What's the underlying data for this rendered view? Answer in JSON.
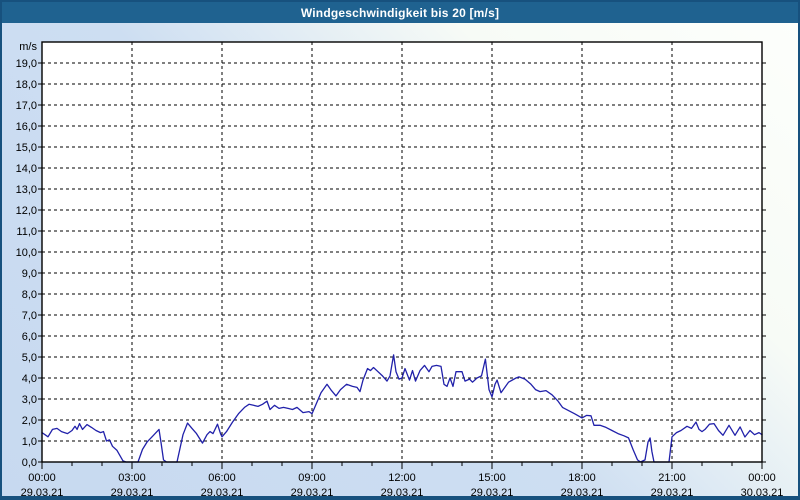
{
  "window": {
    "title": "Windgeschwindigkeit bis 20 [m/s]"
  },
  "colors": {
    "frame_border": "#17517e",
    "titlebar_bg": "#1f6290",
    "titlebar_text": "#ffffff",
    "plot_bg": "#ffffff",
    "plot_border": "#000000",
    "grid": "#000000",
    "series_line": "#2121aa",
    "label_text": "#000000",
    "margin_bg_bottom_left": "#c7d9f0",
    "margin_bg_top_right": "#fdfffc"
  },
  "chart_data": {
    "type": "line",
    "title": "Windgeschwindigkeit bis 20 [m/s]",
    "unit_label": "m/s",
    "ylim": [
      0,
      20
    ],
    "xlim_hours": [
      0,
      24
    ],
    "grid": {
      "style": "dashed",
      "horizontal_step": 1,
      "vertical_step_hours": 3,
      "minor_x_tick_hours": 1
    },
    "legend": "none",
    "y_ticks": [
      {
        "value": 0,
        "label": "0,0"
      },
      {
        "value": 1,
        "label": "1,0"
      },
      {
        "value": 2,
        "label": "2,0"
      },
      {
        "value": 3,
        "label": "3,0"
      },
      {
        "value": 4,
        "label": "4,0"
      },
      {
        "value": 5,
        "label": "5,0"
      },
      {
        "value": 6,
        "label": "6,0"
      },
      {
        "value": 7,
        "label": "7,0"
      },
      {
        "value": 8,
        "label": "8,0"
      },
      {
        "value": 9,
        "label": "9,0"
      },
      {
        "value": 10,
        "label": "10,0"
      },
      {
        "value": 11,
        "label": "11,0"
      },
      {
        "value": 12,
        "label": "12,0"
      },
      {
        "value": 13,
        "label": "13,0"
      },
      {
        "value": 14,
        "label": "14,0"
      },
      {
        "value": 15,
        "label": "15,0"
      },
      {
        "value": 16,
        "label": "16,0"
      },
      {
        "value": 17,
        "label": "17,0"
      },
      {
        "value": 18,
        "label": "18,0"
      },
      {
        "value": 19,
        "label": "19,0"
      }
    ],
    "x_ticks": [
      {
        "hour": 0,
        "time": "00:00",
        "date": "29.03.21"
      },
      {
        "hour": 3,
        "time": "03:00",
        "date": "29.03.21"
      },
      {
        "hour": 6,
        "time": "06:00",
        "date": "29.03.21"
      },
      {
        "hour": 9,
        "time": "09:00",
        "date": "29.03.21"
      },
      {
        "hour": 12,
        "time": "12:00",
        "date": "29.03.21"
      },
      {
        "hour": 15,
        "time": "15:00",
        "date": "29.03.21"
      },
      {
        "hour": 18,
        "time": "18:00",
        "date": "29.03.21"
      },
      {
        "hour": 21,
        "time": "21:00",
        "date": "29.03.21"
      },
      {
        "hour": 24,
        "time": "00:00",
        "date": "30.03.21"
      }
    ],
    "series": [
      {
        "name": "Windgeschwindigkeit",
        "color": "#2121aa",
        "points": [
          [
            0.0,
            1.4
          ],
          [
            0.1,
            1.3
          ],
          [
            0.2,
            1.2
          ],
          [
            0.35,
            1.55
          ],
          [
            0.5,
            1.6
          ],
          [
            0.65,
            1.45
          ],
          [
            0.85,
            1.35
          ],
          [
            1.0,
            1.5
          ],
          [
            1.1,
            1.7
          ],
          [
            1.17,
            1.55
          ],
          [
            1.25,
            1.83
          ],
          [
            1.35,
            1.55
          ],
          [
            1.5,
            1.78
          ],
          [
            1.65,
            1.65
          ],
          [
            1.8,
            1.5
          ],
          [
            1.95,
            1.4
          ],
          [
            2.05,
            1.45
          ],
          [
            2.15,
            1.0
          ],
          [
            2.25,
            1.05
          ],
          [
            2.35,
            0.75
          ],
          [
            2.5,
            0.55
          ],
          [
            2.6,
            0.3
          ],
          [
            2.7,
            0.05
          ],
          [
            2.8,
            0.0
          ],
          [
            3.2,
            0.0
          ],
          [
            3.35,
            0.6
          ],
          [
            3.5,
            0.95
          ],
          [
            3.7,
            1.25
          ],
          [
            3.9,
            1.55
          ],
          [
            3.97,
            0.9
          ],
          [
            4.05,
            0.1
          ],
          [
            4.15,
            0.0
          ],
          [
            4.5,
            0.0
          ],
          [
            4.6,
            0.65
          ],
          [
            4.7,
            1.3
          ],
          [
            4.85,
            1.85
          ],
          [
            5.0,
            1.6
          ],
          [
            5.15,
            1.35
          ],
          [
            5.35,
            0.9
          ],
          [
            5.5,
            1.3
          ],
          [
            5.6,
            1.45
          ],
          [
            5.7,
            1.35
          ],
          [
            5.85,
            1.8
          ],
          [
            5.95,
            1.35
          ],
          [
            6.0,
            1.2
          ],
          [
            6.15,
            1.45
          ],
          [
            6.35,
            1.9
          ],
          [
            6.55,
            2.3
          ],
          [
            6.75,
            2.6
          ],
          [
            6.9,
            2.75
          ],
          [
            7.05,
            2.7
          ],
          [
            7.2,
            2.65
          ],
          [
            7.35,
            2.75
          ],
          [
            7.5,
            2.9
          ],
          [
            7.6,
            2.5
          ],
          [
            7.75,
            2.7
          ],
          [
            7.9,
            2.55
          ],
          [
            8.05,
            2.6
          ],
          [
            8.2,
            2.55
          ],
          [
            8.35,
            2.5
          ],
          [
            8.5,
            2.6
          ],
          [
            8.7,
            2.35
          ],
          [
            8.9,
            2.4
          ],
          [
            9.0,
            2.3
          ],
          [
            9.15,
            2.8
          ],
          [
            9.3,
            3.3
          ],
          [
            9.5,
            3.7
          ],
          [
            9.65,
            3.4
          ],
          [
            9.8,
            3.15
          ],
          [
            9.95,
            3.45
          ],
          [
            10.15,
            3.7
          ],
          [
            10.35,
            3.6
          ],
          [
            10.5,
            3.55
          ],
          [
            10.6,
            3.35
          ],
          [
            10.7,
            3.9
          ],
          [
            10.85,
            4.45
          ],
          [
            10.95,
            4.35
          ],
          [
            11.05,
            4.5
          ],
          [
            11.2,
            4.3
          ],
          [
            11.35,
            4.1
          ],
          [
            11.5,
            3.85
          ],
          [
            11.6,
            4.1
          ],
          [
            11.72,
            5.1
          ],
          [
            11.8,
            4.3
          ],
          [
            11.9,
            3.95
          ],
          [
            12.0,
            4.0
          ],
          [
            12.1,
            4.45
          ],
          [
            12.25,
            3.9
          ],
          [
            12.35,
            4.35
          ],
          [
            12.45,
            3.85
          ],
          [
            12.6,
            4.35
          ],
          [
            12.75,
            4.6
          ],
          [
            12.9,
            4.3
          ],
          [
            13.0,
            4.55
          ],
          [
            13.15,
            4.6
          ],
          [
            13.3,
            4.55
          ],
          [
            13.4,
            3.7
          ],
          [
            13.5,
            3.6
          ],
          [
            13.6,
            4.0
          ],
          [
            13.7,
            3.6
          ],
          [
            13.8,
            4.3
          ],
          [
            14.0,
            4.3
          ],
          [
            14.1,
            3.85
          ],
          [
            14.25,
            3.95
          ],
          [
            14.35,
            3.8
          ],
          [
            14.5,
            4.0
          ],
          [
            14.65,
            4.1
          ],
          [
            14.78,
            4.9
          ],
          [
            14.9,
            3.45
          ],
          [
            15.0,
            3.1
          ],
          [
            15.1,
            3.7
          ],
          [
            15.17,
            3.9
          ],
          [
            15.3,
            3.3
          ],
          [
            15.55,
            3.8
          ],
          [
            15.8,
            4.0
          ],
          [
            15.9,
            4.05
          ],
          [
            16.1,
            3.95
          ],
          [
            16.3,
            3.7
          ],
          [
            16.45,
            3.45
          ],
          [
            16.6,
            3.35
          ],
          [
            16.8,
            3.4
          ],
          [
            17.0,
            3.2
          ],
          [
            17.2,
            2.9
          ],
          [
            17.35,
            2.6
          ],
          [
            17.55,
            2.45
          ],
          [
            17.75,
            2.3
          ],
          [
            18.0,
            2.1
          ],
          [
            18.15,
            2.22
          ],
          [
            18.3,
            2.2
          ],
          [
            18.4,
            1.75
          ],
          [
            18.6,
            1.75
          ],
          [
            18.8,
            1.65
          ],
          [
            19.0,
            1.5
          ],
          [
            19.2,
            1.35
          ],
          [
            19.4,
            1.25
          ],
          [
            19.55,
            1.15
          ],
          [
            19.7,
            0.6
          ],
          [
            19.85,
            0.1
          ],
          [
            19.95,
            0.0
          ],
          [
            20.1,
            0.1
          ],
          [
            20.2,
            0.95
          ],
          [
            20.27,
            1.15
          ],
          [
            20.33,
            0.5
          ],
          [
            20.4,
            0.0
          ],
          [
            20.9,
            0.0
          ],
          [
            21.0,
            1.2
          ],
          [
            21.15,
            1.4
          ],
          [
            21.3,
            1.5
          ],
          [
            21.5,
            1.7
          ],
          [
            21.65,
            1.6
          ],
          [
            21.8,
            1.9
          ],
          [
            21.9,
            1.55
          ],
          [
            22.0,
            1.45
          ],
          [
            22.1,
            1.55
          ],
          [
            22.25,
            1.8
          ],
          [
            22.4,
            1.83
          ],
          [
            22.55,
            1.5
          ],
          [
            22.7,
            1.27
          ],
          [
            22.9,
            1.75
          ],
          [
            23.1,
            1.27
          ],
          [
            23.27,
            1.67
          ],
          [
            23.43,
            1.19
          ],
          [
            23.6,
            1.5
          ],
          [
            23.75,
            1.3
          ],
          [
            23.9,
            1.4
          ],
          [
            24.0,
            1.3
          ]
        ]
      }
    ]
  }
}
